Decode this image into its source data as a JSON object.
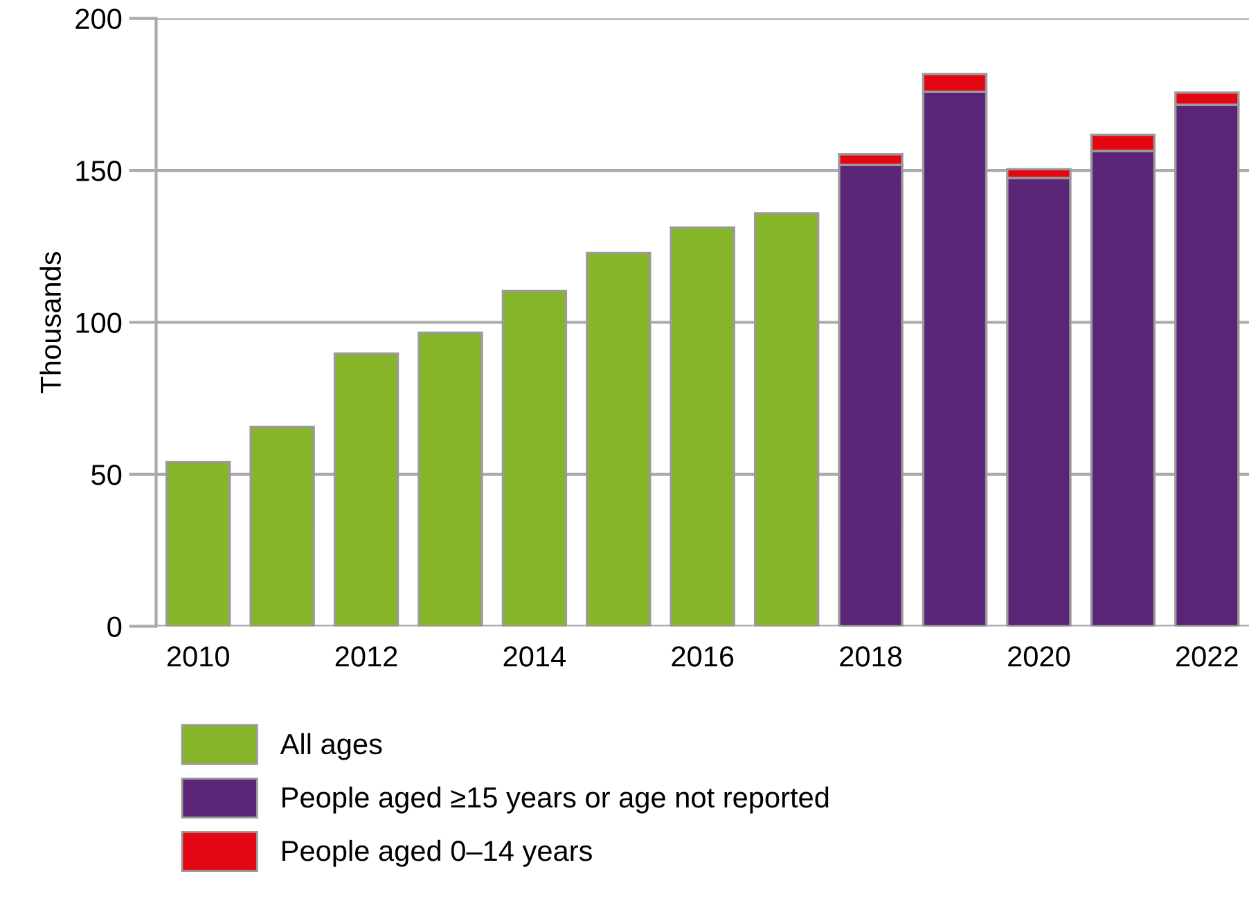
{
  "chart_data": {
    "type": "bar",
    "stacked": true,
    "ylabel": "Thousands",
    "categories": [
      "2010",
      null,
      "2012",
      null,
      "2014",
      null,
      "2016",
      null,
      "2018",
      null,
      "2020",
      null,
      "2022"
    ],
    "series": [
      {
        "name": "All ages",
        "color": "#86b52a",
        "values": [
          54,
          65.6,
          89.7,
          96.6,
          110.3,
          122.8,
          131.2,
          135.9,
          null,
          null,
          null,
          null,
          null
        ]
      },
      {
        "name": "People aged ≥15 years or age not reported",
        "color": "#5a2576",
        "values": [
          null,
          null,
          null,
          null,
          null,
          null,
          null,
          null,
          151.8,
          175.9,
          147.5,
          156.4,
          171.6
        ]
      },
      {
        "name": "People aged 0–14 years",
        "color": "#e30613",
        "values": [
          null,
          null,
          null,
          null,
          null,
          null,
          null,
          null,
          3.5,
          5.8,
          2.9,
          5.3,
          4.0
        ]
      }
    ],
    "ylim": [
      0,
      200
    ],
    "yticks": [
      0,
      50,
      100,
      150,
      200
    ],
    "grid": "y",
    "legend": "bottom"
  }
}
